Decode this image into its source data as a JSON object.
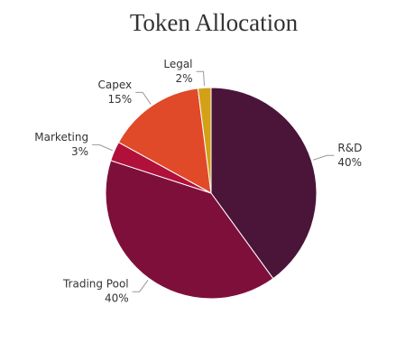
{
  "chart_data": {
    "type": "pie",
    "title": "Token Allocation",
    "categories": [
      "R&D",
      "Trading Pool",
      "Marketing",
      "Capex",
      "Legal"
    ],
    "values": [
      40,
      40,
      3,
      15,
      2
    ],
    "value_labels": [
      "40%",
      "40%",
      "3%",
      "15%",
      "2%"
    ],
    "colors": [
      "#4a1538",
      "#7e0f3a",
      "#b0103a",
      "#e04a28",
      "#d4a017"
    ]
  }
}
